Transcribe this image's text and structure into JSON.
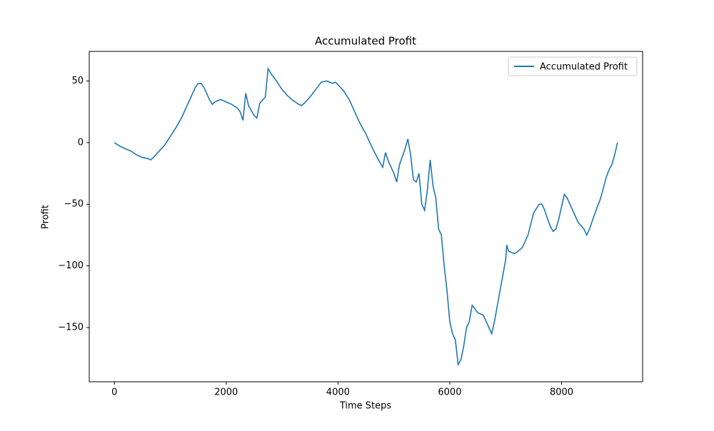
{
  "chart_data": {
    "type": "line",
    "title": "Accumulated Profit",
    "xlabel": "Time Steps",
    "ylabel": "Profit",
    "x": [
      0,
      100,
      200,
      300,
      400,
      500,
      600,
      650,
      700,
      800,
      900,
      1000,
      1100,
      1200,
      1300,
      1400,
      1450,
      1500,
      1550,
      1600,
      1700,
      1750,
      1800,
      1900,
      2000,
      2100,
      2200,
      2250,
      2300,
      2350,
      2400,
      2500,
      2550,
      2600,
      2700,
      2750,
      2800,
      2900,
      3000,
      3100,
      3200,
      3300,
      3350,
      3400,
      3500,
      3600,
      3700,
      3800,
      3900,
      3950,
      4000,
      4100,
      4200,
      4300,
      4400,
      4500,
      4600,
      4700,
      4800,
      4850,
      4900,
      5000,
      5050,
      5100,
      5200,
      5250,
      5300,
      5350,
      5400,
      5450,
      5500,
      5550,
      5600,
      5650,
      5700,
      5750,
      5800,
      5850,
      5900,
      5950,
      6000,
      6050,
      6100,
      6150,
      6200,
      6250,
      6300,
      6350,
      6400,
      6450,
      6500,
      6600,
      6700,
      6750,
      6800,
      6900,
      7000,
      7020,
      7050,
      7150,
      7200,
      7300,
      7400,
      7500,
      7600,
      7650,
      7700,
      7750,
      7800,
      7850,
      7900,
      7950,
      8000,
      8050,
      8100,
      8200,
      8300,
      8400,
      8450,
      8500,
      8600,
      8700,
      8800,
      8850,
      8900,
      8950,
      9000
    ],
    "series": [
      {
        "name": "Accumulated Profit",
        "color": "#1f77b4",
        "values": [
          0,
          -3,
          -5,
          -7,
          -10,
          -12,
          -13,
          -14,
          -12,
          -7,
          -2,
          5,
          12,
          20,
          30,
          40,
          45,
          48,
          48,
          45,
          35,
          31,
          33,
          35,
          33,
          31,
          28,
          25,
          18,
          40,
          30,
          22,
          20,
          32,
          37,
          60,
          56,
          50,
          43,
          38,
          34,
          31,
          30,
          32,
          37,
          43,
          49,
          50,
          48,
          49,
          47,
          42,
          35,
          25,
          15,
          7,
          -3,
          -12,
          -20,
          -8,
          -15,
          -25,
          -32,
          -18,
          -5,
          3,
          -10,
          -30,
          -32,
          -25,
          -50,
          -55,
          -38,
          -14,
          -35,
          -45,
          -70,
          -75,
          -100,
          -120,
          -145,
          -155,
          -160,
          -180,
          -176,
          -165,
          -150,
          -145,
          -132,
          -135,
          -138,
          -140,
          -150,
          -155,
          -145,
          -120,
          -95,
          -83,
          -88,
          -90,
          -89,
          -85,
          -75,
          -57,
          -50,
          -50,
          -55,
          -62,
          -68,
          -72,
          -70,
          -62,
          -52,
          -42,
          -45,
          -55,
          -65,
          -70,
          -75,
          -70,
          -57,
          -45,
          -28,
          -22,
          -18,
          -10,
          0
        ]
      }
    ],
    "xlim": [
      -450,
      9450
    ],
    "ylim": [
      -194,
      74
    ],
    "xticks": [
      0,
      2000,
      4000,
      6000,
      8000
    ],
    "yticks": [
      {
        "value": -150,
        "label": "−150"
      },
      {
        "value": -100,
        "label": "−100"
      },
      {
        "value": -50,
        "label": "−50"
      },
      0,
      50
    ],
    "legend": "upper right"
  }
}
